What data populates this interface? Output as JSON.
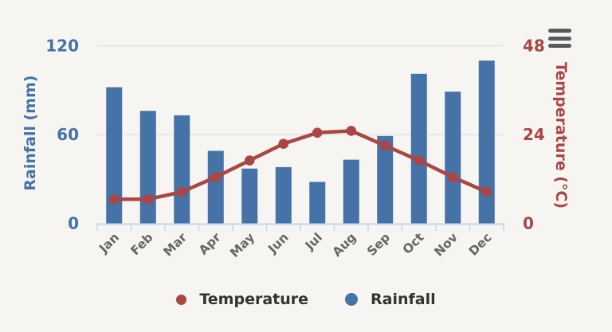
{
  "chart": {
    "background_color": "#f6f5f2",
    "context_menu_icon_color": "#58595b"
  },
  "chart_data": {
    "type": "bar",
    "subtype": "combo-column-line-dual-axis",
    "categories": [
      "Jan",
      "Feb",
      "Mar",
      "Apr",
      "May",
      "Jun",
      "Jul",
      "Aug",
      "Sep",
      "Oct",
      "Nov",
      "Dec"
    ],
    "series": [
      {
        "name": "Temperature",
        "type": "line",
        "axis": "right",
        "color": "#AA4643",
        "values": [
          6.5,
          6.5,
          8.5,
          12.5,
          17,
          21.5,
          24.5,
          25,
          21,
          17,
          12.5,
          8.5
        ]
      },
      {
        "name": "Rainfall",
        "type": "bar",
        "axis": "left",
        "color": "#4572A7",
        "values": [
          92,
          76,
          73,
          49,
          37,
          38,
          28,
          43,
          59,
          101,
          89,
          110
        ]
      }
    ],
    "left_axis": {
      "title": "Rainfall (mm)",
      "color": "#4572A7",
      "ticks": [
        0,
        60,
        120
      ],
      "range": [
        0,
        120
      ]
    },
    "right_axis": {
      "title": "Temperature (°C)",
      "color": "#AA4643",
      "ticks": [
        0,
        24,
        48
      ],
      "range": [
        0,
        48
      ]
    },
    "x_axis": {
      "label_color": "#666666",
      "label_rotation": -45,
      "line_color": "#c6d5e8"
    },
    "grid": {
      "on": true,
      "color": "#e3e3e3"
    },
    "legend_position": "bottom",
    "legend": [
      {
        "label": "Temperature",
        "marker_color": "#AA4643"
      },
      {
        "label": "Rainfall",
        "marker_color": "#4572A7"
      }
    ]
  }
}
